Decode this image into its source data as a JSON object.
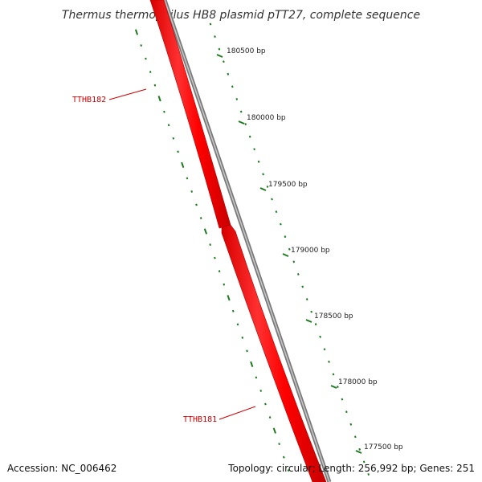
{
  "title": "Thermus thermophilus HB8 plasmid pTT27, complete sequence",
  "ruler": {
    "ticks": [
      "180500 bp",
      "180000 bp",
      "179500 bp",
      "179000 bp",
      "178500 bp",
      "178000 bp",
      "177500 bp"
    ]
  },
  "genes": [
    {
      "name": "TTHB182"
    },
    {
      "name": "TTHB181"
    }
  ],
  "footer": {
    "accession": "Accession: NC_006462",
    "summary": "Topology: circular; Length: 256,992 bp; Genes: 251"
  },
  "colors": {
    "gene_fill": "#ff0000",
    "gene_label": "#cc0000",
    "backbone": "#777777",
    "tick": "#1e7a1e"
  }
}
